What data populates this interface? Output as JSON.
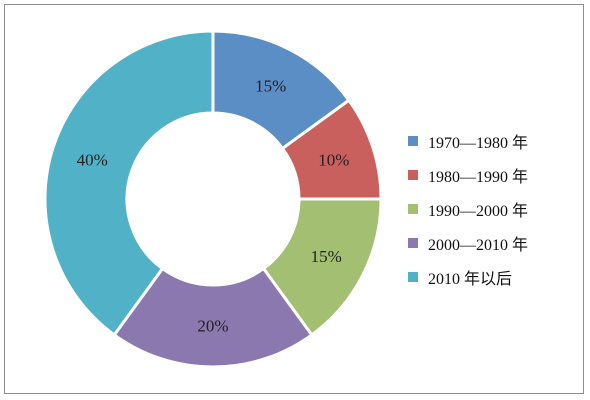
{
  "chart_data": {
    "type": "pie",
    "donut": true,
    "legend_position": "right",
    "slices": [
      {
        "name": "1970—1980 年",
        "value": 15,
        "label": "15%",
        "color": "#5b8ec4"
      },
      {
        "name": "1980—1990 年",
        "value": 10,
        "label": "10%",
        "color": "#c9605e"
      },
      {
        "name": "1990—2000 年",
        "value": 15,
        "label": "15%",
        "color": "#a3bf72"
      },
      {
        "name": "2000—2010 年",
        "value": 20,
        "label": "20%",
        "color": "#8a78ae"
      },
      {
        "name": "2010 年以后",
        "value": 40,
        "label": "40%",
        "color": "#51b1c7"
      }
    ]
  }
}
